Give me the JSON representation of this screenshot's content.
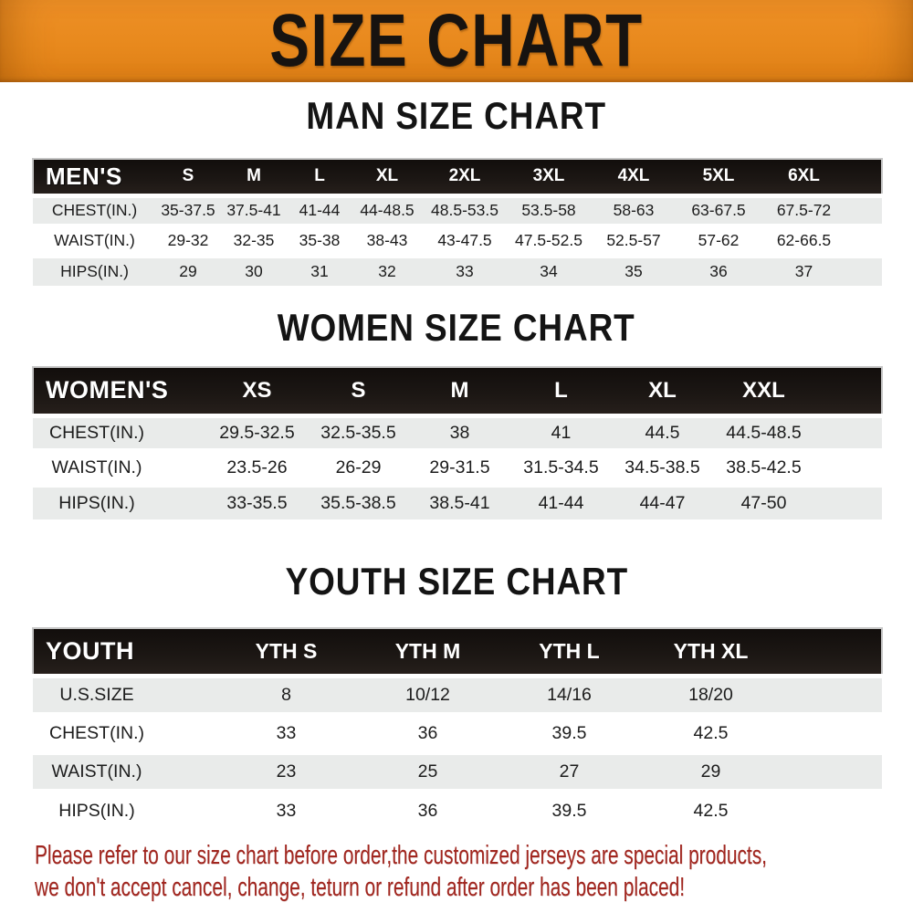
{
  "banner": {
    "title": "SIZE CHART",
    "bg_color": "#E8891D",
    "text_color": "#171310"
  },
  "sections": [
    {
      "id": "men",
      "title": "MAN SIZE CHART",
      "header_label": "MEN'S",
      "columns": [
        "S",
        "M",
        "L",
        "XL",
        "2XL",
        "3XL",
        "4XL",
        "5XL",
        "6XL"
      ],
      "rows": [
        {
          "label": "CHEST(IN.)",
          "values": [
            "35-37.5",
            "37.5-41",
            "41-44",
            "44-48.5",
            "48.5-53.5",
            "53.5-58",
            "58-63",
            "63-67.5",
            "67.5-72"
          ]
        },
        {
          "label": "WAIST(IN.)",
          "values": [
            "29-32",
            "32-35",
            "35-38",
            "38-43",
            "43-47.5",
            "47.5-52.5",
            "52.5-57",
            "57-62",
            "62-66.5"
          ]
        },
        {
          "label": "HIPS(IN.)",
          "values": [
            "29",
            "30",
            "31",
            "32",
            "33",
            "34",
            "35",
            "36",
            "37"
          ]
        }
      ]
    },
    {
      "id": "women",
      "title": "WOMEN SIZE CHART",
      "header_label": "WOMEN'S",
      "columns": [
        "XS",
        "S",
        "M",
        "L",
        "XL",
        "XXL"
      ],
      "rows": [
        {
          "label": "CHEST(IN.)",
          "values": [
            "29.5-32.5",
            "32.5-35.5",
            "38",
            "41",
            "44.5",
            "44.5-48.5"
          ]
        },
        {
          "label": "WAIST(IN.)",
          "values": [
            "23.5-26",
            "26-29",
            "29-31.5",
            "31.5-34.5",
            "34.5-38.5",
            "38.5-42.5"
          ]
        },
        {
          "label": "HIPS(IN.)",
          "values": [
            "33-35.5",
            "35.5-38.5",
            "38.5-41",
            "41-44",
            "44-47",
            "47-50"
          ]
        }
      ]
    },
    {
      "id": "youth",
      "title": "YOUTH SIZE CHART",
      "header_label": "YOUTH",
      "columns": [
        "YTH S",
        "YTH M",
        "YTH L",
        "YTH XL"
      ],
      "rows": [
        {
          "label": "U.S.SIZE",
          "values": [
            "8",
            "10/12",
            "14/16",
            "18/20"
          ]
        },
        {
          "label": "CHEST(IN.)",
          "values": [
            "33",
            "36",
            "39.5",
            "42.5"
          ]
        },
        {
          "label": "WAIST(IN.)",
          "values": [
            "23",
            "25",
            "27",
            "29"
          ]
        },
        {
          "label": "HIPS(IN.)",
          "values": [
            "33",
            "36",
            "39.5",
            "42.5"
          ]
        }
      ]
    }
  ],
  "footer": {
    "line1": "Please refer to our size chart before order,the customized jerseys are special products,",
    "line2": "we don't accept cancel, change, teturn or refund after order has been placed!",
    "text_color": "#A1261F"
  },
  "colors": {
    "header_row_bg": "#1A1613",
    "alt_row_bg": "#E9EBEA",
    "header_text": "#FFFFFF"
  }
}
